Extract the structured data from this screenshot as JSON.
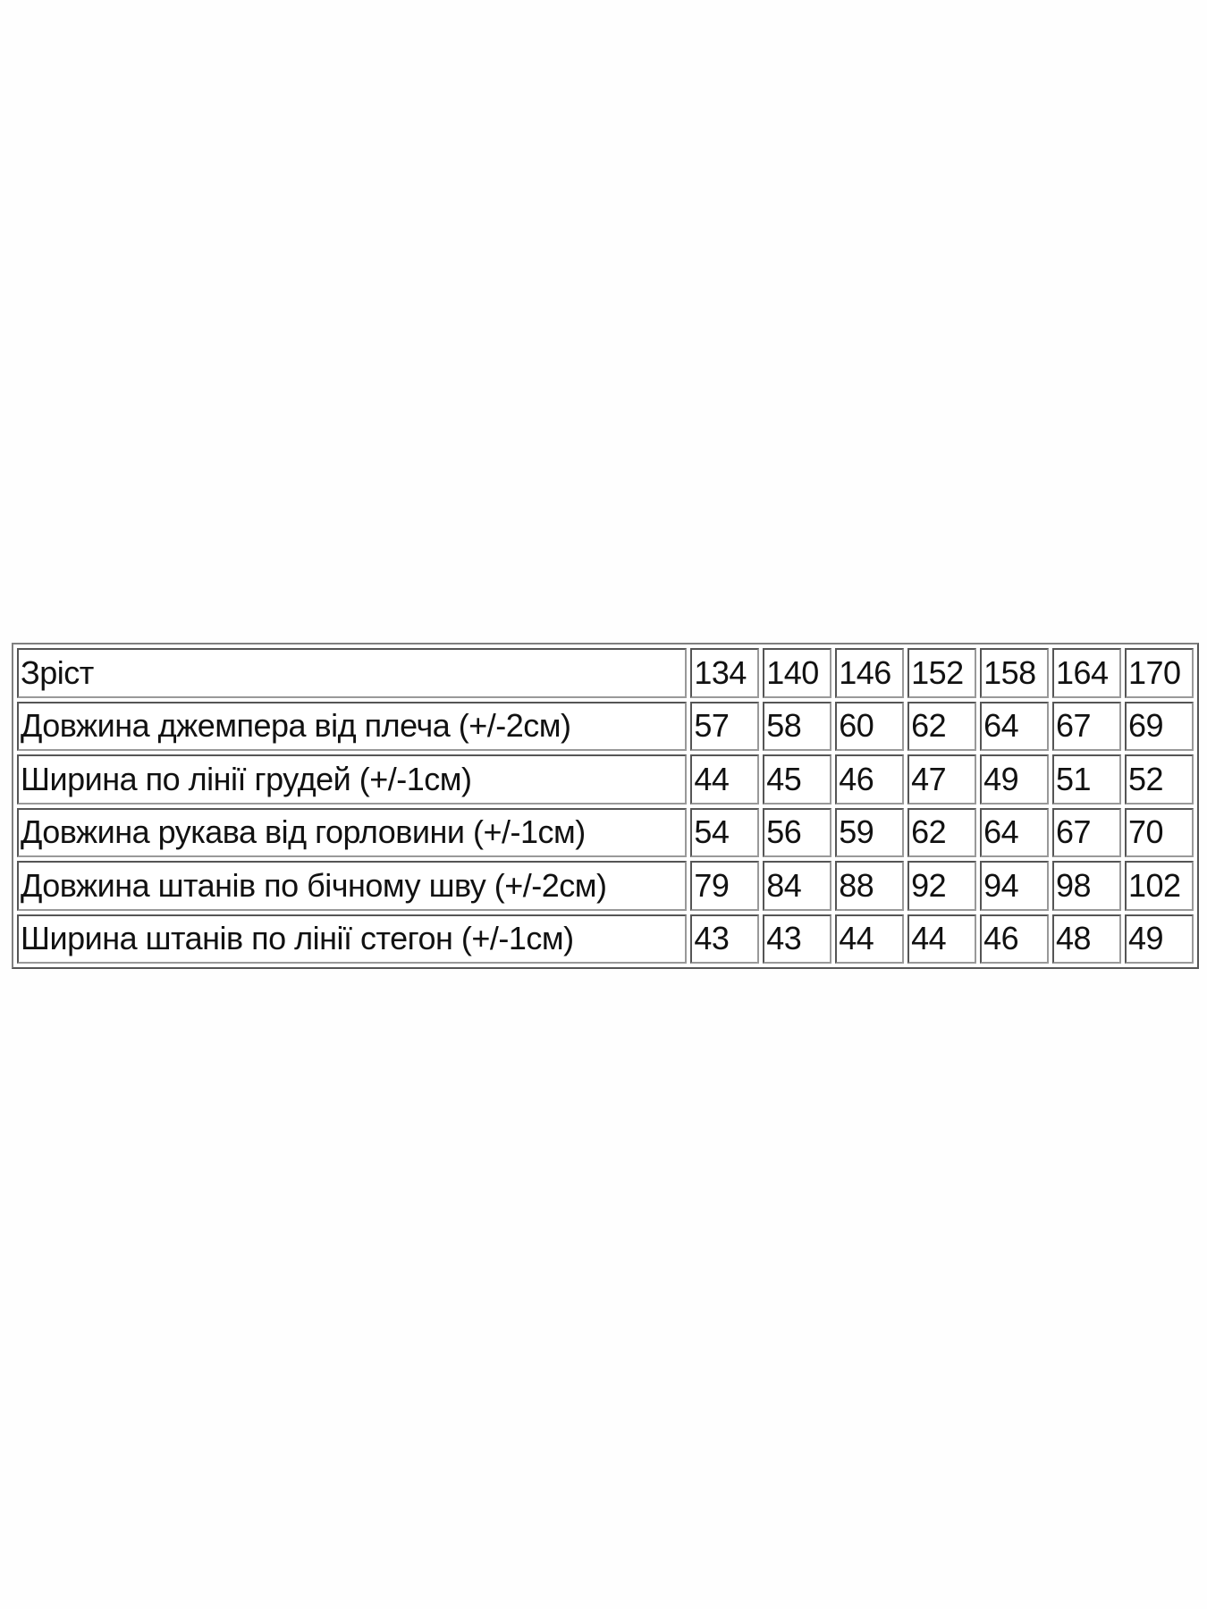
{
  "size_table": {
    "header": {
      "label": "Зріст",
      "values": [
        "134",
        "140",
        "146",
        "152",
        "158",
        "164",
        "170"
      ]
    },
    "rows": [
      {
        "label": "Довжина джемпера від плеча (+/-2см)",
        "values": [
          "57",
          "58",
          "60",
          "62",
          "64",
          "67",
          "69"
        ]
      },
      {
        "label": "Ширина по лінії грудей (+/-1см)",
        "values": [
          "44",
          "45",
          "46",
          "47",
          "49",
          "51",
          "52"
        ]
      },
      {
        "label": "Довжина рукава від горловини (+/-1см)",
        "values": [
          "54",
          "56",
          "59",
          "62",
          "64",
          "67",
          "70"
        ]
      },
      {
        "label": "Довжина штанів по бічному шву (+/-2см)",
        "values": [
          "79",
          "84",
          "88",
          "92",
          "94",
          "98",
          "102"
        ]
      },
      {
        "label": "Ширина штанів по лінії стегон (+/-1см)",
        "values": [
          "43",
          "43",
          "44",
          "44",
          "46",
          "48",
          "49"
        ]
      }
    ]
  }
}
